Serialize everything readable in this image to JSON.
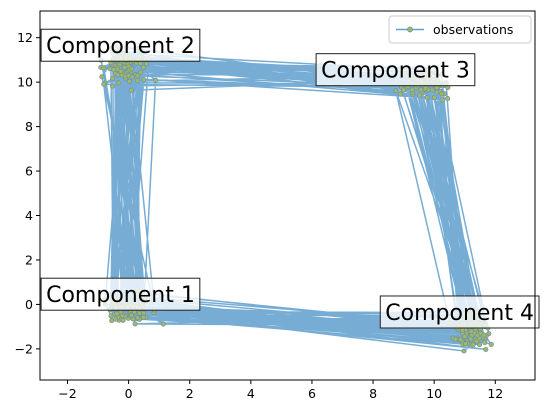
{
  "chart_data": {
    "type": "line",
    "title": "",
    "xlabel": "",
    "ylabel": "",
    "xlim": [
      -2.9,
      13.3
    ],
    "ylim": [
      -3.4,
      13.2
    ],
    "xticks": [
      -2,
      0,
      2,
      4,
      6,
      8,
      10,
      12
    ],
    "yticks": [
      -2,
      0,
      2,
      4,
      6,
      8,
      10,
      12
    ],
    "grid": false,
    "legend": {
      "placement": "top-right",
      "entries": [
        "observations"
      ]
    },
    "series": [
      {
        "name": "observations",
        "color": "#5f9fcd",
        "marker_face": "#9fb964",
        "marker_edge": "#6f8fa8",
        "clusters": [
          {
            "label": "Component 1",
            "center": [
              0.1,
              -0.2
            ],
            "spread": [
              0.55,
              0.55
            ]
          },
          {
            "label": "Component 2",
            "center": [
              -0.1,
              10.7
            ],
            "spread": [
              0.55,
              0.6
            ]
          },
          {
            "label": "Component 3",
            "center": [
              9.6,
              9.9
            ],
            "spread": [
              0.55,
              0.5
            ]
          },
          {
            "label": "Component 4",
            "center": [
              11.2,
              -1.2
            ],
            "spread": [
              0.45,
              0.55
            ]
          }
        ],
        "points": 400
      }
    ],
    "annotations": [
      {
        "text": "Component 1",
        "x": -2.7,
        "y": 0.1
      },
      {
        "text": "Component 2",
        "x": -2.7,
        "y": 11.3
      },
      {
        "text": "Component 3",
        "x": 6.3,
        "y": 10.2
      },
      {
        "text": "Component 4",
        "x": 8.4,
        "y": -0.7
      }
    ]
  }
}
